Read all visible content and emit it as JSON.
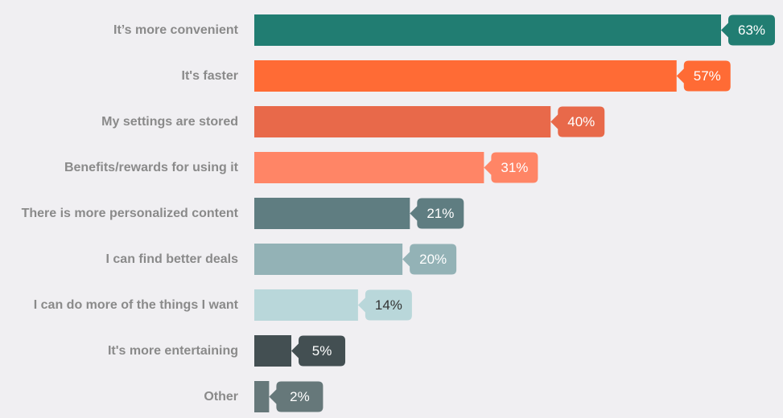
{
  "chart_data": {
    "type": "bar",
    "orientation": "horizontal",
    "categories": [
      "It’s more convenient",
      "It's faster",
      "My settings are stored",
      "Benefits/rewards for using it",
      "There is more personalized content",
      "I can find better deals",
      "I can do more of the things I want",
      "It's more entertaining",
      "Other"
    ],
    "values": [
      63,
      57,
      40,
      31,
      21,
      20,
      14,
      5,
      2
    ],
    "value_labels": [
      "63%",
      "57%",
      "40%",
      "31%",
      "21%",
      "20%",
      "14%",
      "5%",
      "2%"
    ],
    "colors": [
      "#217d72",
      "#ff6b35",
      "#e8694a",
      "#ff8566",
      "#5f7d81",
      "#93b2b6",
      "#b9d7da",
      "#434f52",
      "#66787a"
    ],
    "label_text_colors": [
      "#ffffff",
      "#ffffff",
      "#ffffff",
      "#ffffff",
      "#ffffff",
      "#ffffff",
      "#333333",
      "#ffffff",
      "#ffffff"
    ],
    "xlim": [
      0,
      63
    ],
    "grid": false,
    "legend": "none",
    "title": "",
    "xlabel": "",
    "ylabel": ""
  }
}
